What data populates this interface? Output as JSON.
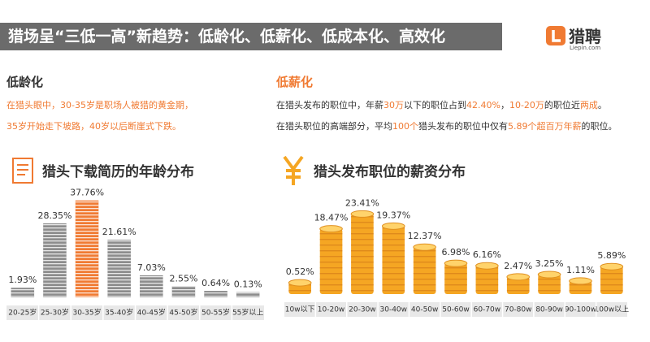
{
  "header": {
    "title": "猎场呈“三低一高”新趋势：低龄化、低薪化、低成本化、高效化",
    "logo": "猎聘",
    "logo_url": "Liepin.com"
  },
  "sections": [
    {
      "heading": "低龄化",
      "heading_color": "#333333",
      "text_color": "#f07a32",
      "highlight_color": "#f07a32",
      "lines": [
        [
          "在猎头眼中，30-35岁是职场人被猎的黄金期，"
        ],
        [
          "35岁开始走下坡路，40岁以后断崖式下跌。"
        ]
      ]
    },
    {
      "heading": "低薪化",
      "heading_color": "#f07a32",
      "text_color": "#333333",
      "highlight_color": "#f07a32",
      "lines": [
        [
          "在猎头发布的职位中，年薪",
          "30万",
          "以下的职位占到",
          "42.40%",
          "，",
          "10-20万",
          "的职位近",
          "两成",
          "。"
        ],
        [
          "在猎头职位的高端部分，平均",
          "100个",
          "猎头发布的职位中仅有",
          "5.89个超百万年薪",
          "的职位。"
        ]
      ]
    }
  ],
  "chart_data": [
    {
      "type": "bar",
      "marker": "paper",
      "title": "猎头下载简历的年龄分布",
      "categories": [
        "20-25岁",
        "25-30岁",
        "30-35岁",
        "35-40岁",
        "40-45岁",
        "45-50岁",
        "50-55岁",
        "55岁以上"
      ],
      "values": [
        1.93,
        28.35,
        37.76,
        21.61,
        7.03,
        2.55,
        0.64,
        0.13
      ],
      "value_labels": [
        "1.93%",
        "28.35%",
        "37.76%",
        "21.61%",
        "7.03%",
        "2.55%",
        "0.64%",
        "0.13%"
      ],
      "colors": [
        "#8c8c8c",
        "#8c8c8c",
        "#f07a32",
        "#8c8c8c",
        "#8c8c8c",
        "#8c8c8c",
        "#8c8c8c",
        "#8c8c8c"
      ]
    },
    {
      "type": "bar",
      "marker": "coin",
      "title": "猎头发布职位的薪资分布",
      "categories": [
        "10w以下",
        "10-20w",
        "20-30w",
        "30-40w",
        "40-50w",
        "50-60w",
        "60-70w",
        "70-80w",
        "80-90w",
        "90-100w",
        "100w以上"
      ],
      "values": [
        0.52,
        18.47,
        23.41,
        19.37,
        12.37,
        6.98,
        6.16,
        2.47,
        3.25,
        1.11,
        5.89
      ],
      "value_labels": [
        "0.52%",
        "18.47%",
        "23.41%",
        "19.37%",
        "12.37%",
        "6.98%",
        "6.16%",
        "2.47%",
        "3.25%",
        "1.11%",
        "5.89%"
      ],
      "color": "#f5a623"
    }
  ]
}
